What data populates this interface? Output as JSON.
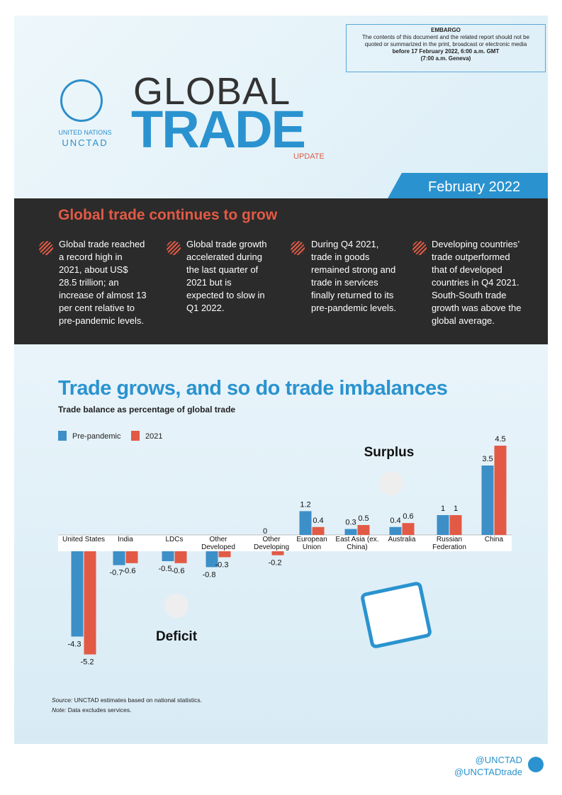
{
  "embargo": {
    "title": "EMBARGO",
    "lines": [
      "The contents of this document and the related report should not be",
      "quoted or summarized in the print, broadcast or electronic media"
    ],
    "date": "before 17 February 2022, 6:00 a.m. GMT",
    "time": "(7:00 a.m. Geneva)"
  },
  "logo": {
    "org": "UNITED NATIONS",
    "name": "UNCTAD"
  },
  "masthead": {
    "line1": "GLOBAL",
    "line2": "TRADE",
    "line3": "UPDATE"
  },
  "date": "February 2022",
  "highlights": {
    "title": "Global trade continues to grow",
    "items": [
      "Global trade reached a record high in 2021, about US$ 28.5 trillion; an increase of almost 13 per cent relative to pre-pandemic levels.",
      "Global trade growth accelerated during the last quarter of 2021 but is expected to slow in Q1 2022.",
      "During Q4 2021, trade in goods remained strong and trade in services finally returned to its pre-pandemic levels.",
      "Developing countries’ trade outperformed that of developed countries in Q4 2021. South-South trade growth was above the global average."
    ]
  },
  "chart_data": {
    "type": "bar",
    "title": "Trade grows, and so do trade imbalances",
    "subtitle": "Trade balance as percentage of global trade",
    "categories": [
      "United States",
      "India",
      "LDCs",
      "Other Developed",
      "Other Developing",
      "European Union",
      "East Asia (ex. China)",
      "Australia",
      "Russian Federation",
      "China"
    ],
    "series": [
      {
        "name": "Pre-pandemic",
        "color": "#3d8fc8",
        "values": [
          -4.3,
          -0.7,
          -0.5,
          -0.8,
          0,
          1.2,
          0.3,
          0.4,
          1,
          3.5
        ]
      },
      {
        "name": "2021",
        "color": "#e25a45",
        "values": [
          -5.2,
          -0.6,
          -0.6,
          -0.3,
          -0.2,
          0.4,
          0.5,
          0.6,
          1,
          4.5
        ]
      }
    ],
    "ylim": [
      -6,
      5
    ],
    "annotations": [
      "Surplus",
      "Deficit"
    ],
    "legend": "top-left"
  },
  "source": {
    "label": "Source:",
    "text": "UNCTAD estimates based on national statistics."
  },
  "note": {
    "label": "Note:",
    "text": "Data excludes services."
  },
  "social": [
    "@UNCTAD",
    "@UNCTADtrade"
  ]
}
